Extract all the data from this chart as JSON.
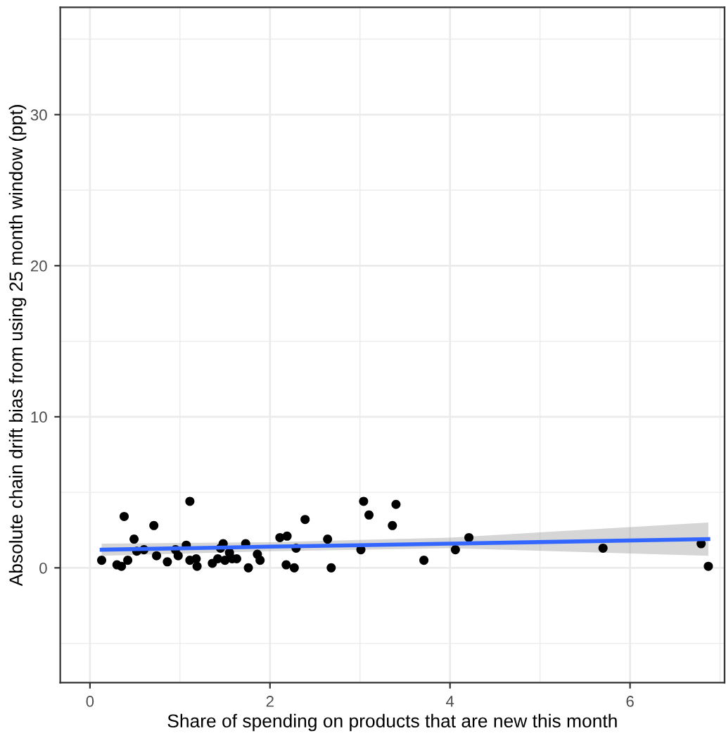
{
  "chart_data": {
    "type": "scatter",
    "xlabel": "Share of spending on products that are new this month",
    "ylabel": "Absolute chain drift bias from using 25 month window (ppt)",
    "xlim": [
      -0.33,
      7.05
    ],
    "ylim": [
      -7.6,
      37.1
    ],
    "xticks": [
      0,
      2,
      4,
      6
    ],
    "yticks": [
      0,
      10,
      20,
      30
    ],
    "grid": true,
    "series": [
      {
        "color": "#000000",
        "marker": "circle",
        "x": [
          0.13,
          0.3,
          0.35,
          0.42,
          0.38,
          0.49,
          0.52,
          0.6,
          0.71,
          0.74,
          0.86,
          0.95,
          0.98,
          1.07,
          1.11,
          1.11,
          1.18,
          1.19,
          1.36,
          1.42,
          1.45,
          1.48,
          1.5,
          1.55,
          1.58,
          1.63,
          1.73,
          1.76,
          1.86,
          1.89,
          2.11,
          2.19,
          2.18,
          2.27,
          2.29,
          2.39,
          2.64,
          2.68,
          3.01,
          3.04,
          3.1,
          3.36,
          3.4,
          3.71,
          4.06,
          4.21,
          5.7,
          6.79,
          6.87
        ],
        "values": [
          0.5,
          0.2,
          0.1,
          0.5,
          3.4,
          1.9,
          1.1,
          1.2,
          2.8,
          0.8,
          0.4,
          1.2,
          0.8,
          1.5,
          4.4,
          0.5,
          0.6,
          0.1,
          0.3,
          0.6,
          1.3,
          1.6,
          0.5,
          1.0,
          0.6,
          0.6,
          1.6,
          0.0,
          0.9,
          0.5,
          2.0,
          2.1,
          0.2,
          0.0,
          1.3,
          3.2,
          1.9,
          0.0,
          1.2,
          4.4,
          3.5,
          2.8,
          4.2,
          0.5,
          1.2,
          2.0,
          1.3,
          1.6,
          0.1
        ]
      },
      {
        "type": "line",
        "color": "#3366ff",
        "x": [
          0.13,
          2,
          4,
          6.87
        ],
        "values": [
          1.2,
          1.4,
          1.6,
          1.9
        ],
        "lower": [
          0.8,
          1.1,
          1.3,
          0.8
        ],
        "upper": [
          1.6,
          1.7,
          2.0,
          3.0
        ]
      }
    ]
  }
}
